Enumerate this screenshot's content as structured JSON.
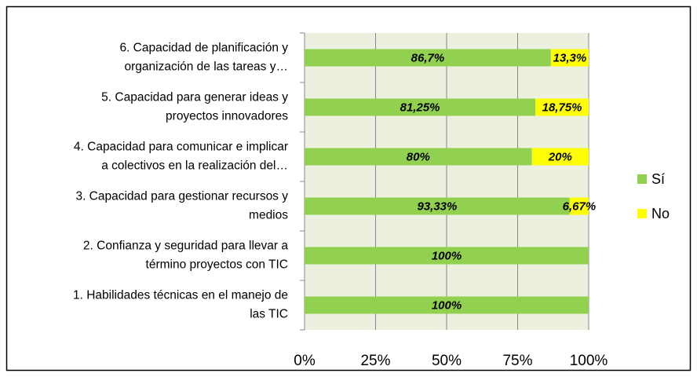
{
  "chart_data": {
    "type": "stacked-bar-horizontal",
    "categories": [
      [
        "6. Capacidad de planificación y",
        "organización de las tareas y…"
      ],
      [
        "5. Capacidad para generar ideas y",
        "proyectos innovadores"
      ],
      [
        "4. Capacidad para comunicar e implicar",
        "a colectivos en la realización del…"
      ],
      [
        "3. Capacidad para gestionar recursos y",
        "medios"
      ],
      [
        "2. Confianza y seguridad para llevar a",
        "término proyectos con TIC"
      ],
      [
        "1. Habilidades técnicas en el manejo de",
        "las TIC"
      ]
    ],
    "series": [
      {
        "name": "Sí",
        "color": "#92d050",
        "values": [
          86.7,
          81.25,
          80,
          93.33,
          100,
          100
        ],
        "value_labels": [
          "86,7%",
          "81,25%",
          "80%",
          "93,33%",
          "100%",
          "100%"
        ]
      },
      {
        "name": "No",
        "color": "#ffff00",
        "values": [
          13.3,
          18.75,
          20,
          6.67,
          0,
          0
        ],
        "value_labels": [
          "13,3%",
          "18,75%",
          "20%",
          "6,67%",
          null,
          null
        ]
      }
    ],
    "xlim": [
      0,
      100
    ],
    "xticks": [
      {
        "value": 0,
        "label": "0%"
      },
      {
        "value": 25,
        "label": "25%"
      },
      {
        "value": 50,
        "label": "50%"
      },
      {
        "value": 75,
        "label": "75%"
      },
      {
        "value": 100,
        "label": "100%"
      }
    ],
    "grid": true,
    "legend": "right"
  }
}
